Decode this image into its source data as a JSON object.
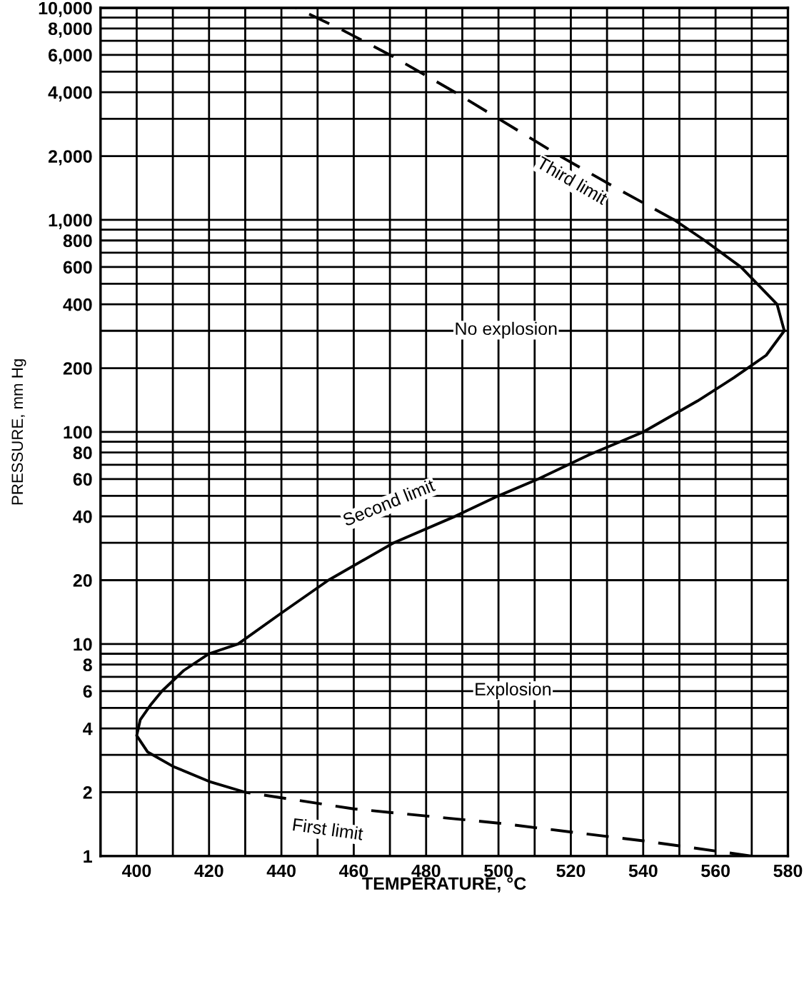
{
  "chart_data": {
    "type": "line",
    "xlabel": "TEMPERATURE, °C",
    "ylabel": "PRESSURE, mm Hg",
    "log": "y",
    "grid": true,
    "marker": "none",
    "xlim": [
      390,
      580
    ],
    "ylim": [
      1,
      10000
    ],
    "xticks": [
      {
        "value": 390,
        "label": null
      },
      400,
      {
        "value": 410,
        "label": null
      },
      420,
      {
        "value": 430,
        "label": null
      },
      440,
      {
        "value": 450,
        "label": null
      },
      460,
      {
        "value": 470,
        "label": null
      },
      480,
      {
        "value": 490,
        "label": null
      },
      500,
      {
        "value": 510,
        "label": null
      },
      520,
      {
        "value": 530,
        "label": null
      },
      540,
      {
        "value": 550,
        "label": null
      },
      560,
      {
        "value": 570,
        "label": null
      },
      580
    ],
    "yticks": [
      1,
      2,
      {
        "value": 3,
        "label": null
      },
      4,
      {
        "value": 5,
        "label": null
      },
      6,
      {
        "value": 7,
        "label": null
      },
      8,
      {
        "value": 9,
        "label": null
      },
      10,
      20,
      {
        "value": 30,
        "label": null
      },
      40,
      {
        "value": 50,
        "label": null
      },
      60,
      {
        "value": 70,
        "label": null
      },
      80,
      {
        "value": 90,
        "label": null
      },
      100,
      200,
      {
        "value": 300,
        "label": null
      },
      400,
      {
        "value": 500,
        "label": null
      },
      600,
      {
        "value": 700,
        "label": null
      },
      800,
      {
        "value": 900,
        "label": null
      },
      {
        "value": 1000,
        "label": "1,000"
      },
      {
        "value": 2000,
        "label": "2,000"
      },
      {
        "value": 3000,
        "label": null
      },
      {
        "value": 4000,
        "label": "4,000"
      },
      {
        "value": 5000,
        "label": null
      },
      {
        "value": 6000,
        "label": "6,000"
      },
      {
        "value": 7000,
        "label": null
      },
      {
        "value": 8000,
        "label": "8,000"
      },
      {
        "value": 9000,
        "label": null
      },
      {
        "value": 10000,
        "label": "10,000"
      }
    ],
    "series": [
      {
        "color": "#000000",
        "line_style": "dashed",
        "x": [
          570,
          540,
          500,
          460,
          430
        ],
        "values": [
          1.0,
          1.18,
          1.43,
          1.67,
          2.0
        ]
      },
      {
        "color": "#000000",
        "line_style": "solid",
        "x": [
          430,
          420,
          410,
          403,
          400,
          401,
          404,
          407,
          413,
          420,
          428,
          440,
          453,
          471,
          488,
          500,
          511,
          525,
          540,
          555,
          565,
          574,
          579,
          577,
          567,
          557,
          548.6
        ],
        "values": [
          2.0,
          2.25,
          2.65,
          3.1,
          3.7,
          4.4,
          5.2,
          6,
          7.5,
          9,
          10,
          14,
          20,
          30,
          40,
          50,
          60,
          78,
          100,
          140,
          180,
          230,
          300,
          400,
          600,
          800,
          1000
        ]
      },
      {
        "color": "#000000",
        "line_style": "dashed",
        "x": [
          548.6,
          533,
          517,
          488,
          470,
          456,
          444
        ],
        "values": [
          1000,
          1400,
          2000,
          4000,
          6000,
          8000,
          10000
        ]
      }
    ],
    "annotations": [
      "Third limit",
      "No explosion",
      "Second limit",
      "Explosion",
      "First limit"
    ]
  }
}
